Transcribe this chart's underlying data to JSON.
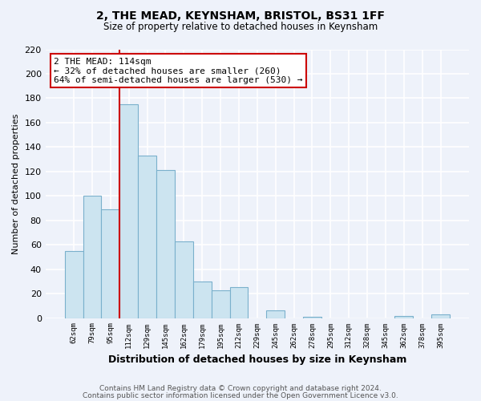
{
  "title": "2, THE MEAD, KEYNSHAM, BRISTOL, BS31 1FF",
  "subtitle": "Size of property relative to detached houses in Keynsham",
  "xlabel": "Distribution of detached houses by size in Keynsham",
  "ylabel": "Number of detached properties",
  "categories": [
    "62sqm",
    "79sqm",
    "95sqm",
    "112sqm",
    "129sqm",
    "145sqm",
    "162sqm",
    "179sqm",
    "195sqm",
    "212sqm",
    "229sqm",
    "245sqm",
    "262sqm",
    "278sqm",
    "295sqm",
    "312sqm",
    "328sqm",
    "345sqm",
    "362sqm",
    "378sqm",
    "395sqm"
  ],
  "values": [
    55,
    100,
    89,
    175,
    133,
    121,
    63,
    30,
    23,
    25,
    0,
    6,
    0,
    1,
    0,
    0,
    0,
    0,
    2,
    0,
    3
  ],
  "bar_color": "#cce4f0",
  "bar_edge_color": "#7ab0cc",
  "ylim": [
    0,
    220
  ],
  "yticks": [
    0,
    20,
    40,
    60,
    80,
    100,
    120,
    140,
    160,
    180,
    200,
    220
  ],
  "annotation_title": "2 THE MEAD: 114sqm",
  "annotation_line1": "← 32% of detached houses are smaller (260)",
  "annotation_line2": "64% of semi-detached houses are larger (530) →",
  "annotation_box_color": "#ffffff",
  "annotation_box_edge": "#cc0000",
  "vertical_line_x": 3,
  "vertical_line_color": "#cc0000",
  "background_color": "#eef2fa",
  "grid_color": "#ffffff",
  "footer_line1": "Contains HM Land Registry data © Crown copyright and database right 2024.",
  "footer_line2": "Contains public sector information licensed under the Open Government Licence v3.0."
}
